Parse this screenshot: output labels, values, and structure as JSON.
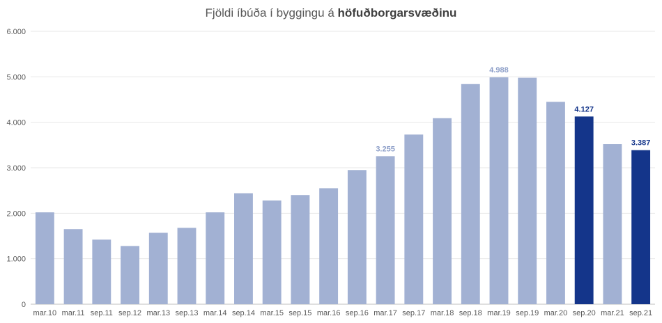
{
  "title": {
    "prefix": "Fjöldi íbúða í byggingu á ",
    "bold": "höfuðborgarsvæðinu"
  },
  "colors": {
    "bar": "#a2b1d3",
    "highlight": "#14358a",
    "grid": "#e7e7e7",
    "axis": "#bfbfbf",
    "label_light": "#8c9ec8"
  },
  "chart_data": {
    "type": "bar",
    "categories": [
      "mar.10",
      "mar.11",
      "sep.11",
      "sep.12",
      "mar.13",
      "sep.13",
      "mar.14",
      "sep.14",
      "mar.15",
      "sep.15",
      "mar.16",
      "sep.16",
      "mar.17",
      "sep.17",
      "mar.18",
      "sep.18",
      "mar.19",
      "sep.19",
      "mar.20",
      "sep.20",
      "mar.21",
      "sep.21"
    ],
    "values": [
      2020,
      1650,
      1420,
      1280,
      1570,
      1680,
      2020,
      2440,
      2280,
      2400,
      2550,
      2950,
      3255,
      3730,
      4090,
      4840,
      4988,
      4980,
      4450,
      4127,
      3520,
      3387
    ],
    "highlighted": [
      false,
      false,
      false,
      false,
      false,
      false,
      false,
      false,
      false,
      false,
      false,
      false,
      false,
      false,
      false,
      false,
      false,
      false,
      false,
      true,
      false,
      true
    ],
    "data_labels": [
      {
        "index": 12,
        "text": "3.255"
      },
      {
        "index": 16,
        "text": "4.988"
      },
      {
        "index": 19,
        "text": "4.127"
      },
      {
        "index": 21,
        "text": "3.387"
      }
    ],
    "y_ticks": [
      {
        "value": 0,
        "label": "0"
      },
      {
        "value": 1000,
        "label": "1.000"
      },
      {
        "value": 2000,
        "label": "2.000"
      },
      {
        "value": 3000,
        "label": "3.000"
      },
      {
        "value": 4000,
        "label": "4.000"
      },
      {
        "value": 5000,
        "label": "5.000"
      },
      {
        "value": 6000,
        "label": "6.000"
      }
    ],
    "ylim": [
      0,
      6000
    ],
    "grid": true,
    "legend": "none"
  }
}
